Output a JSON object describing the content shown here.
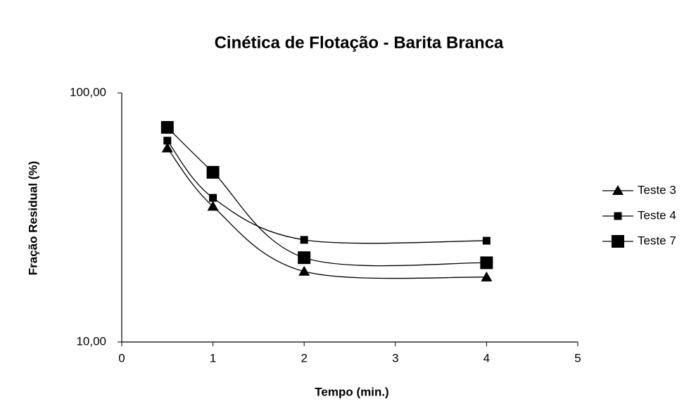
{
  "chart_data": {
    "type": "line",
    "title": "Cinética de Flotação - Barita Branca",
    "xlabel": "Tempo (min.)",
    "ylabel": "Fração Residual (%)",
    "x": [
      0.5,
      1,
      2,
      4
    ],
    "series": [
      {
        "name": "Teste 3",
        "color": "#000000",
        "marker": "triangle",
        "values": [
          60,
          35,
          19.2,
          18.2
        ]
      },
      {
        "name": "Teste 4",
        "color": "#000000",
        "marker": "small-square",
        "values": [
          64.3,
          37.9,
          25.7,
          25.5
        ]
      },
      {
        "name": "Teste 7",
        "color": "#000000",
        "marker": "square",
        "values": [
          72.7,
          48,
          21.8,
          20.8
        ]
      }
    ],
    "xlim": [
      0,
      5
    ],
    "xticks": [
      0,
      1,
      2,
      3,
      4,
      5
    ],
    "ylim": [
      10,
      100
    ],
    "yticks": [
      {
        "value": 10,
        "label": "10,00"
      },
      {
        "value": 100,
        "label": "100,00"
      }
    ],
    "ylog": true,
    "smooth": true,
    "grid": false,
    "legend": "right"
  }
}
